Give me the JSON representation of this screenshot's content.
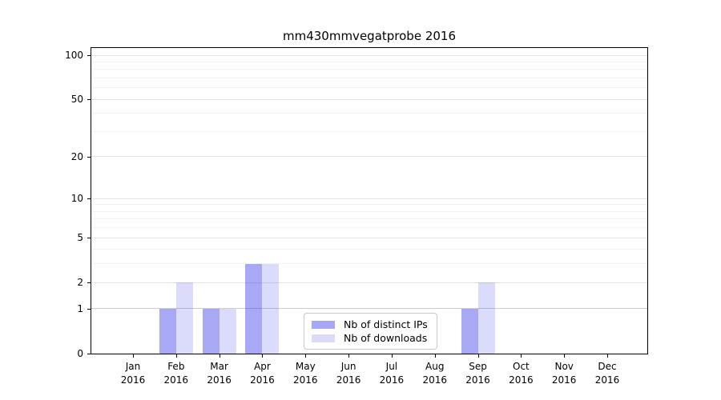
{
  "title": "mm430mmvegatprobe 2016",
  "legend": {
    "items": [
      {
        "label": "Nb of distinct IPs",
        "color": "#a7a7f7"
      },
      {
        "label": "Nb of downloads",
        "color": "#dbdbf9"
      }
    ]
  },
  "colors": {
    "bar_distinct_ips": "rgba(30,30,230,0.39)",
    "bar_downloads": "rgba(30,30,230,0.16)",
    "axis": "#000000",
    "grid_major": "#e3e3e3",
    "grid_minor": "#f2f2f2",
    "grid_level_one": "#cccccc"
  },
  "chart_data": {
    "type": "bar",
    "title": "mm430mmvegatprobe 2016",
    "categories": [
      "Jan",
      "Feb",
      "Mar",
      "Apr",
      "May",
      "Jun",
      "Jul",
      "Aug",
      "Sep",
      "Oct",
      "Nov",
      "Dec"
    ],
    "category_year": "2016",
    "series": [
      {
        "name": "Nb of distinct IPs",
        "values": [
          0,
          1,
          1,
          3,
          0,
          0,
          0,
          0,
          1,
          0,
          0,
          0
        ]
      },
      {
        "name": "Nb of downloads",
        "values": [
          0,
          2,
          1,
          3,
          0,
          0,
          0,
          0,
          2,
          0,
          0,
          0
        ]
      }
    ],
    "yscale": "log1p",
    "yticks": [
      0,
      1,
      2,
      5,
      10,
      20,
      50,
      100
    ],
    "yticks_minor": [
      3,
      4,
      6,
      7,
      8,
      9,
      30,
      40,
      60,
      70,
      80,
      90
    ],
    "ylim": [
      0,
      100
    ],
    "grid": "horizontal",
    "legend_position": "lower center"
  }
}
